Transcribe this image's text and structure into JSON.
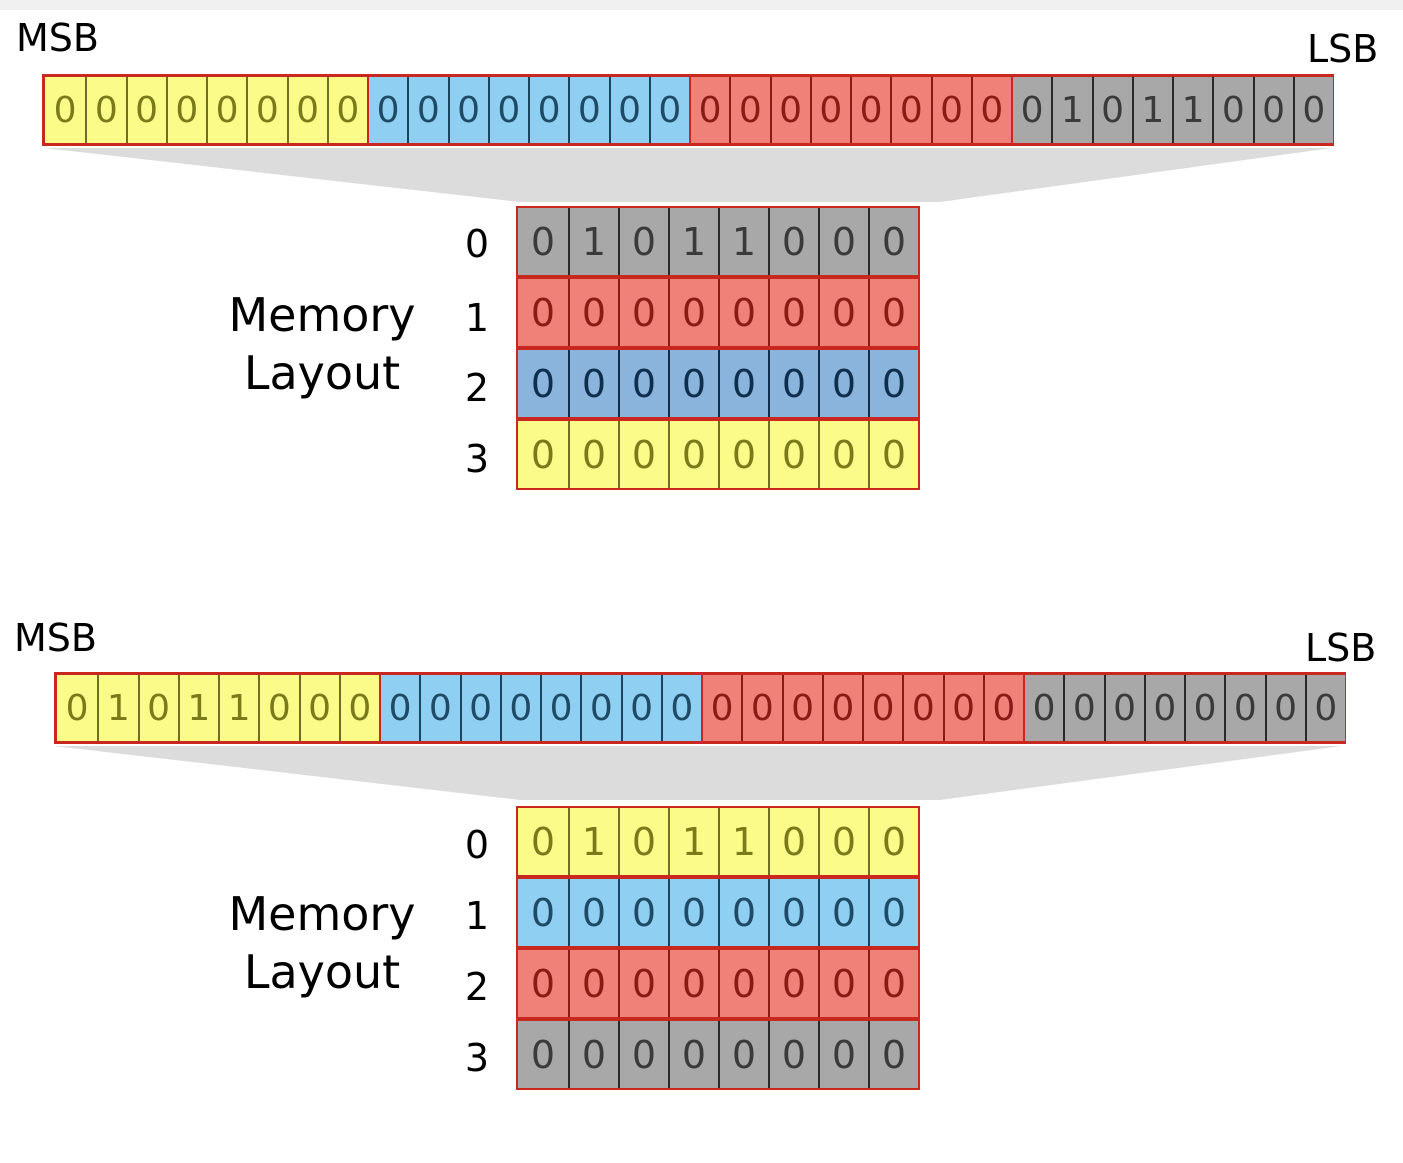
{
  "diagrams": [
    {
      "msb_label": "MSB",
      "lsb_label": "LSB",
      "register": [
        {
          "color": "yellow",
          "bits": [
            "0",
            "0",
            "0",
            "0",
            "0",
            "0",
            "0",
            "0"
          ]
        },
        {
          "color": "blue",
          "bits": [
            "0",
            "0",
            "0",
            "0",
            "0",
            "0",
            "0",
            "0"
          ]
        },
        {
          "color": "red",
          "bits": [
            "0",
            "0",
            "0",
            "0",
            "0",
            "0",
            "0",
            "0"
          ]
        },
        {
          "color": "gray",
          "bits": [
            "0",
            "1",
            "0",
            "1",
            "1",
            "0",
            "0",
            "0"
          ]
        }
      ],
      "memory_title_line1": "Memory",
      "memory_title_line2": "Layout",
      "memory_rows": [
        {
          "index": "0",
          "color": "gray",
          "bits": [
            "0",
            "1",
            "0",
            "1",
            "1",
            "0",
            "0",
            "0"
          ]
        },
        {
          "index": "1",
          "color": "red",
          "bits": [
            "0",
            "0",
            "0",
            "0",
            "0",
            "0",
            "0",
            "0"
          ]
        },
        {
          "index": "2",
          "color": "darkblue",
          "bits": [
            "0",
            "0",
            "0",
            "0",
            "0",
            "0",
            "0",
            "0"
          ]
        },
        {
          "index": "3",
          "color": "yellow",
          "bits": [
            "0",
            "0",
            "0",
            "0",
            "0",
            "0",
            "0",
            "0"
          ]
        }
      ]
    },
    {
      "msb_label": "MSB",
      "lsb_label": "LSB",
      "register": [
        {
          "color": "yellow",
          "bits": [
            "0",
            "1",
            "0",
            "1",
            "1",
            "0",
            "0",
            "0"
          ]
        },
        {
          "color": "blue",
          "bits": [
            "0",
            "0",
            "0",
            "0",
            "0",
            "0",
            "0",
            "0"
          ]
        },
        {
          "color": "red",
          "bits": [
            "0",
            "0",
            "0",
            "0",
            "0",
            "0",
            "0",
            "0"
          ]
        },
        {
          "color": "gray",
          "bits": [
            "0",
            "0",
            "0",
            "0",
            "0",
            "0",
            "0",
            "0"
          ]
        }
      ],
      "memory_title_line1": "Memory",
      "memory_title_line2": "Layout",
      "memory_rows": [
        {
          "index": "0",
          "color": "yellow",
          "bits": [
            "0",
            "1",
            "0",
            "1",
            "1",
            "0",
            "0",
            "0"
          ]
        },
        {
          "index": "1",
          "color": "blue",
          "bits": [
            "0",
            "0",
            "0",
            "0",
            "0",
            "0",
            "0",
            "0"
          ]
        },
        {
          "index": "2",
          "color": "red",
          "bits": [
            "0",
            "0",
            "0",
            "0",
            "0",
            "0",
            "0",
            "0"
          ]
        },
        {
          "index": "3",
          "color": "gray",
          "bits": [
            "0",
            "0",
            "0",
            "0",
            "0",
            "0",
            "0",
            "0"
          ]
        }
      ]
    }
  ],
  "colors": {
    "yellow": "#fbfb8a",
    "blue": "#8fd0f2",
    "red": "#ef8179",
    "gray": "#a8a8a8",
    "darkblue": "#8ab4dc",
    "outline": "#c8281e",
    "funnel": "#dcdcdc"
  }
}
